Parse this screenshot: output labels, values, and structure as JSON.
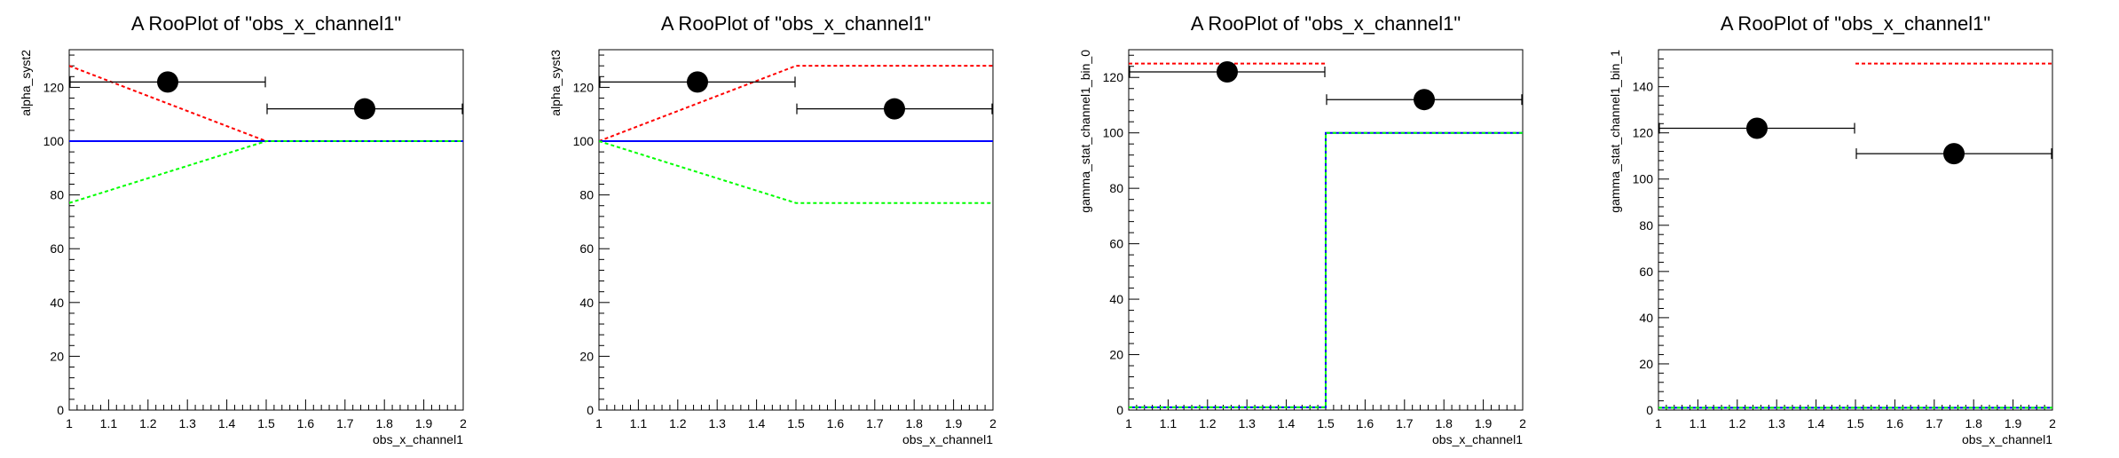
{
  "chart_data": [
    {
      "type": "line",
      "title": "A RooPlot of \"obs_x_channel1\"",
      "xlabel": "obs_x_channel1",
      "ylabel": "alpha_syst2",
      "xlim": [
        1,
        2
      ],
      "ylim": [
        0,
        134
      ],
      "xticks": [
        "1",
        "1.1",
        "1.2",
        "1.3",
        "1.4",
        "1.5",
        "1.6",
        "1.7",
        "1.8",
        "1.9",
        "2"
      ],
      "yticks": [
        "0",
        "20",
        "40",
        "60",
        "80",
        "100",
        "120"
      ],
      "data_points": [
        {
          "x": 1.25,
          "xlow": 1.0,
          "xhigh": 1.5,
          "y": 122
        },
        {
          "x": 1.75,
          "xlow": 1.5,
          "xhigh": 2.0,
          "y": 112
        }
      ],
      "series": [
        {
          "color": "#0000ff",
          "style": "solid",
          "x": [
            1.0,
            1.5,
            2.0
          ],
          "y": [
            100,
            100,
            100
          ]
        },
        {
          "color": "#ff0000",
          "style": "dashed",
          "x": [
            1.0,
            1.5,
            2.0
          ],
          "y": [
            128,
            100,
            100
          ]
        },
        {
          "color": "#00ff00",
          "style": "dashed",
          "x": [
            1.0,
            1.5,
            2.0
          ],
          "y": [
            77,
            100,
            100
          ]
        }
      ]
    },
    {
      "type": "line",
      "title": "A RooPlot of \"obs_x_channel1\"",
      "xlabel": "obs_x_channel1",
      "ylabel": "alpha_syst3",
      "xlim": [
        1,
        2
      ],
      "ylim": [
        0,
        134
      ],
      "xticks": [
        "1",
        "1.1",
        "1.2",
        "1.3",
        "1.4",
        "1.5",
        "1.6",
        "1.7",
        "1.8",
        "1.9",
        "2"
      ],
      "yticks": [
        "0",
        "20",
        "40",
        "60",
        "80",
        "100",
        "120"
      ],
      "data_points": [
        {
          "x": 1.25,
          "xlow": 1.0,
          "xhigh": 1.5,
          "y": 122
        },
        {
          "x": 1.75,
          "xlow": 1.5,
          "xhigh": 2.0,
          "y": 112
        }
      ],
      "series": [
        {
          "color": "#0000ff",
          "style": "solid",
          "x": [
            1.0,
            1.5,
            2.0
          ],
          "y": [
            100,
            100,
            100
          ]
        },
        {
          "color": "#ff0000",
          "style": "dashed",
          "x": [
            1.0,
            1.5,
            2.0
          ],
          "y": [
            100,
            128,
            128
          ]
        },
        {
          "color": "#00ff00",
          "style": "dashed",
          "x": [
            1.0,
            1.5,
            2.0
          ],
          "y": [
            100,
            77,
            77
          ]
        }
      ]
    },
    {
      "type": "line",
      "title": "A RooPlot of \"obs_x_channel1\"",
      "xlabel": "obs_x_channel1",
      "ylabel": "gamma_stat_channel1_bin_0",
      "xlim": [
        1,
        2
      ],
      "ylim": [
        0,
        130
      ],
      "xticks": [
        "1",
        "1.1",
        "1.2",
        "1.3",
        "1.4",
        "1.5",
        "1.6",
        "1.7",
        "1.8",
        "1.9",
        "2"
      ],
      "yticks": [
        "0",
        "20",
        "40",
        "60",
        "80",
        "100",
        "120"
      ],
      "data_points": [
        {
          "x": 1.25,
          "xlow": 1.0,
          "xhigh": 1.5,
          "y": 122
        },
        {
          "x": 1.75,
          "xlow": 1.5,
          "xhigh": 2.0,
          "y": 112
        }
      ],
      "series": [
        {
          "color": "#0000ff",
          "style": "solid",
          "x": [
            1.0,
            1.5,
            1.5,
            2.0
          ],
          "y": [
            1,
            1,
            100,
            100
          ]
        },
        {
          "color": "#ff0000",
          "style": "dashed",
          "x": [
            1.0,
            1.5
          ],
          "y": [
            125,
            125
          ]
        },
        {
          "color": "#00ff00",
          "style": "dashed",
          "x": [
            1.0,
            1.5,
            1.5,
            2.0
          ],
          "y": [
            1,
            1,
            100,
            100
          ]
        }
      ]
    },
    {
      "type": "line",
      "title": "A RooPlot of \"obs_x_channel1\"",
      "xlabel": "obs_x_channel1",
      "ylabel": "gamma_stat_channel1_bin_1",
      "xlim": [
        1,
        2
      ],
      "ylim": [
        0,
        156
      ],
      "xticks": [
        "1",
        "1.1",
        "1.2",
        "1.3",
        "1.4",
        "1.5",
        "1.6",
        "1.7",
        "1.8",
        "1.9",
        "2"
      ],
      "yticks": [
        "0",
        "20",
        "40",
        "60",
        "80",
        "100",
        "120",
        "140"
      ],
      "data_points": [
        {
          "x": 1.25,
          "xlow": 1.0,
          "xhigh": 1.5,
          "y": 122
        },
        {
          "x": 1.75,
          "xlow": 1.5,
          "xhigh": 2.0,
          "y": 111
        }
      ],
      "series": [
        {
          "color": "#0000ff",
          "style": "solid",
          "x": [
            1.0,
            2.0
          ],
          "y": [
            1,
            1
          ]
        },
        {
          "color": "#ff0000",
          "style": "dashed",
          "x": [
            1.5,
            2.0
          ],
          "y": [
            150,
            150
          ]
        },
        {
          "color": "#00ff00",
          "style": "dashed",
          "x": [
            1.0,
            2.0
          ],
          "y": [
            1,
            1
          ]
        }
      ]
    }
  ]
}
